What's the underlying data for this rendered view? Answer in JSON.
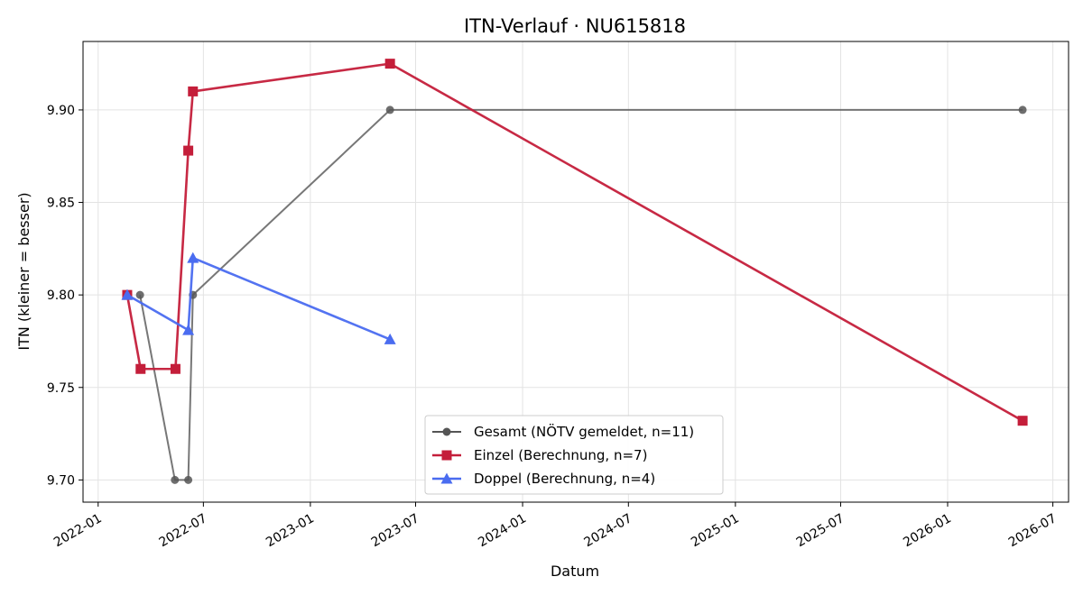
{
  "chart_data": {
    "type": "line",
    "title": "ITN-Verlauf · NU615818",
    "xlabel": "Datum",
    "ylabel": "ITN  (kleiner = besser)",
    "xlim": [
      "2021-12-06",
      "2026-07-28"
    ],
    "ylim": [
      9.688,
      9.937
    ],
    "x_ticks": [
      "2022-01",
      "2022-07",
      "2023-01",
      "2023-07",
      "2024-01",
      "2024-07",
      "2025-01",
      "2025-07",
      "2026-01",
      "2026-07"
    ],
    "y_ticks": [
      9.7,
      9.75,
      9.8,
      9.85,
      9.9
    ],
    "y_tick_labels": [
      "9.70",
      "9.75",
      "9.80",
      "9.85",
      "9.90"
    ],
    "grid": true,
    "legend_position": "lower-center",
    "series": [
      {
        "name": "Gesamt (NÖTV gemeldet, n=11)",
        "color": "#555555",
        "marker": "circle",
        "points": [
          {
            "x": "2022-03-14",
            "y": 9.8
          },
          {
            "x": "2022-05-13",
            "y": 9.7
          },
          {
            "x": "2022-06-05",
            "y": 9.7
          },
          {
            "x": "2022-06-13",
            "y": 9.8
          },
          {
            "x": "2023-05-18",
            "y": 9.9
          },
          {
            "x": "2026-05-10",
            "y": 9.9
          }
        ]
      },
      {
        "name": "Einzel (Berechnung, n=7)",
        "color": "#c41e3a",
        "marker": "square",
        "points": [
          {
            "x": "2022-02-20",
            "y": 9.8
          },
          {
            "x": "2022-03-15",
            "y": 9.76
          },
          {
            "x": "2022-05-14",
            "y": 9.76
          },
          {
            "x": "2022-06-05",
            "y": 9.878
          },
          {
            "x": "2022-06-13",
            "y": 9.91
          },
          {
            "x": "2023-05-18",
            "y": 9.925
          },
          {
            "x": "2026-05-10",
            "y": 9.732
          }
        ]
      },
      {
        "name": "Doppel (Berechnung, n=4)",
        "color": "#4a6cf0",
        "marker": "triangle",
        "points": [
          {
            "x": "2022-02-20",
            "y": 9.8
          },
          {
            "x": "2022-06-05",
            "y": 9.781
          },
          {
            "x": "2022-06-13",
            "y": 9.82
          },
          {
            "x": "2023-05-18",
            "y": 9.776
          }
        ]
      }
    ]
  }
}
